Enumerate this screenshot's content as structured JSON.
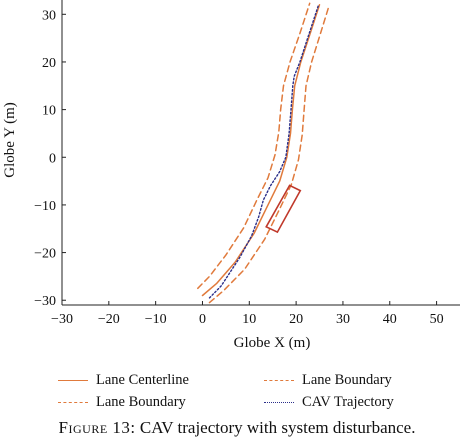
{
  "chart_data": {
    "type": "line",
    "xlabel": "Globe X (m)",
    "ylabel": "Globe Y (m)",
    "xlim": [
      -30,
      55
    ],
    "ylim": [
      -31,
      33
    ],
    "xticks": [
      "−30",
      "−20",
      "−10",
      "0",
      "10",
      "20",
      "30",
      "40",
      "50"
    ],
    "yticks": [
      "−30",
      "−20",
      "−10",
      "0",
      "10",
      "20",
      "30"
    ],
    "legend_position": "bottom",
    "series": [
      {
        "name": "Lane Centerline",
        "style": "solid",
        "color": "#e07a3c",
        "x": [
          0.0,
          3.0,
          7.0,
          11.0,
          14.0,
          16.5,
          18.0,
          18.8,
          19.2,
          19.7,
          21.0,
          23.0,
          25.0
        ],
        "y": [
          -29.0,
          -26.5,
          -22.0,
          -16.0,
          -10.0,
          -5.0,
          0.0,
          5.0,
          10.0,
          15.0,
          20.0,
          26.0,
          32.0
        ]
      },
      {
        "name": "Lane Boundary",
        "style": "dashed",
        "color": "#e07a3c",
        "x": [
          -1.0,
          1.5,
          5.0,
          8.8,
          11.6,
          14.0,
          15.5,
          16.3,
          16.7,
          17.3,
          18.7,
          20.8,
          22.9
        ],
        "y": [
          -27.5,
          -25.0,
          -20.5,
          -14.8,
          -9.0,
          -4.3,
          0.5,
          5.3,
          10.1,
          15.0,
          20.0,
          26.0,
          32.3
        ]
      },
      {
        "name": "Lane Boundary",
        "style": "dashed",
        "color": "#e07a3c",
        "x": [
          1.5,
          4.5,
          9.0,
          13.3,
          16.4,
          19.0,
          20.5,
          21.3,
          21.7,
          22.1,
          23.3,
          25.2,
          27.0
        ],
        "y": [
          -30.5,
          -28.0,
          -23.5,
          -17.2,
          -11.0,
          -5.7,
          -0.5,
          4.7,
          9.9,
          15.0,
          20.0,
          26.0,
          31.7
        ]
      },
      {
        "name": "CAV Trajectory",
        "style": "dotted",
        "color": "#2b2f8a",
        "x": [
          1.5,
          4.0,
          8.0,
          10.5,
          12.0,
          13.0,
          14.5,
          16.5,
          17.8,
          18.5,
          18.9,
          19.3,
          19.6,
          20.8,
          22.8,
          24.8
        ],
        "y": [
          -29.5,
          -27.0,
          -21.0,
          -16.5,
          -12.5,
          -9.0,
          -6.0,
          -3.0,
          0.0,
          5.0,
          10.0,
          15.0,
          17.0,
          20.0,
          26.0,
          32.0
        ]
      }
    ],
    "vehicle_box": {
      "corners_x": [
        13.6,
        16.0,
        18.6,
        20.9
      ],
      "corners_y": [
        -14.6,
        -15.7,
        -5.9,
        -7.0
      ],
      "color": "#c0392b"
    }
  },
  "legend": {
    "items": [
      {
        "label": "Lane Centerline",
        "style": "solid"
      },
      {
        "label": "Lane Boundary",
        "style": "dashed"
      },
      {
        "label": "Lane Boundary",
        "style": "dashed"
      },
      {
        "label": "CAV Trajectory",
        "style": "dotted"
      }
    ]
  },
  "caption": {
    "prefix": "Figure 13:",
    "text": "CAV trajectory with system disturbance."
  }
}
